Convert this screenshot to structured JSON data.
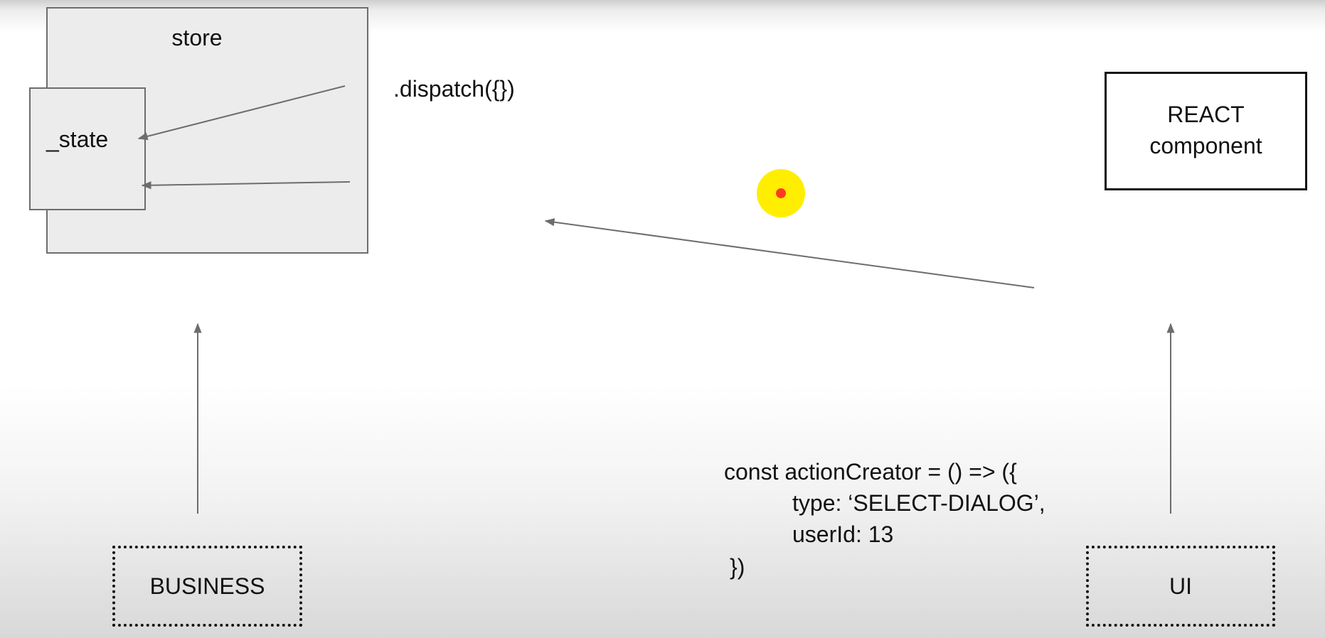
{
  "store": {
    "label": "store"
  },
  "state": {
    "label": "_state"
  },
  "dispatch": {
    "label": ".dispatch({})"
  },
  "react": {
    "line1": "REACT",
    "line2": "component"
  },
  "business": {
    "label": "BUSINESS"
  },
  "ui": {
    "label": "UI"
  },
  "code": {
    "lines": [
      "const actionCreator = () => ({",
      "type: ‘SELECT-DIALOG’,",
      "userId: 13",
      "})"
    ]
  },
  "colors": {
    "cursor_ring": "#ffee00",
    "cursor_dot": "#ff3b1f",
    "arrow": "#6d6d6d"
  }
}
